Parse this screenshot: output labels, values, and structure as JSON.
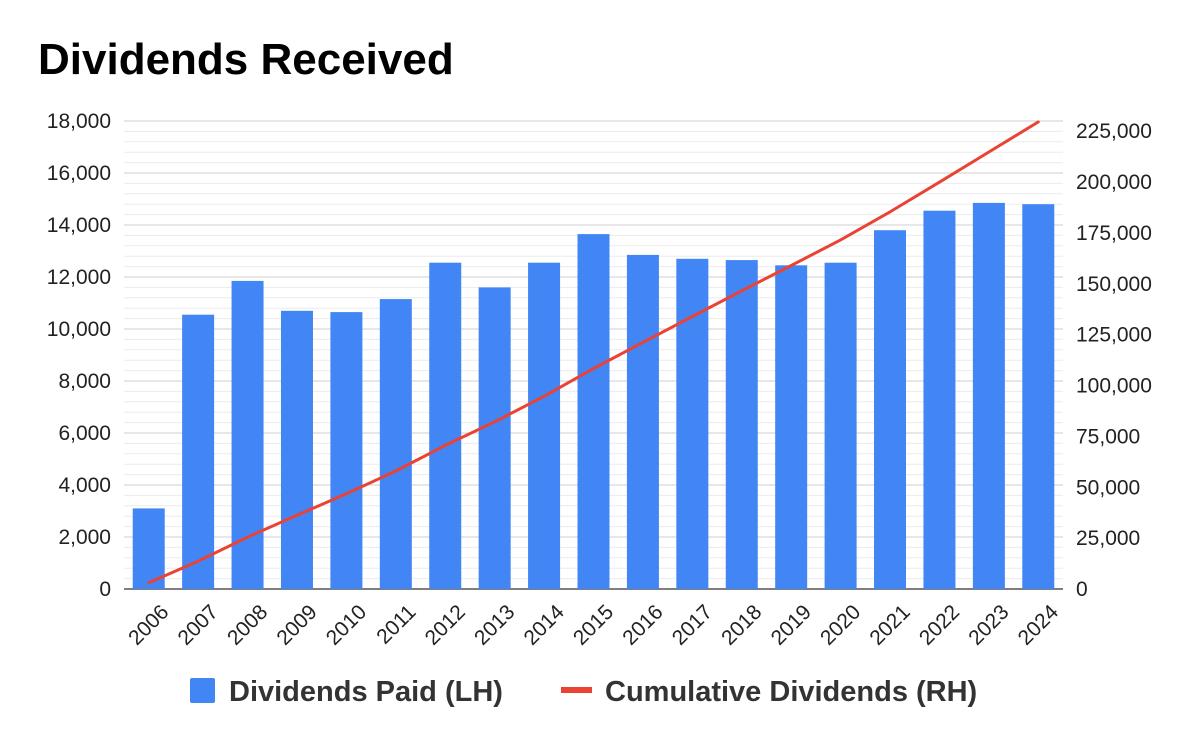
{
  "chart_data": {
    "type": "bar",
    "title": "Dividends Received",
    "categories": [
      "2006",
      "2007",
      "2008",
      "2009",
      "2010",
      "2011",
      "2012",
      "2013",
      "2014",
      "2015",
      "2016",
      "2017",
      "2018",
      "2019",
      "2020",
      "2021",
      "2022",
      "2023",
      "2024"
    ],
    "series": [
      {
        "name": "Dividends Paid (LH)",
        "type": "bar",
        "axis": "left",
        "color": "#4285F4",
        "values": [
          3100,
          10550,
          11850,
          10700,
          10650,
          11150,
          12550,
          11600,
          12550,
          13650,
          12850,
          12700,
          12650,
          12450,
          12550,
          13800,
          14550,
          14850,
          14800
        ]
      },
      {
        "name": "Cumulative Dividends (RH)",
        "type": "line",
        "axis": "right",
        "color": "#EA4335",
        "values": [
          3100,
          13650,
          25500,
          36200,
          46850,
          58000,
          70550,
          82150,
          94700,
          108350,
          121200,
          133900,
          146550,
          159000,
          171550,
          185350,
          199900,
          214750,
          229550
        ]
      }
    ],
    "y_left": {
      "min": 0,
      "max": 18000,
      "ticks": [
        0,
        2000,
        4000,
        6000,
        8000,
        10000,
        12000,
        14000,
        16000,
        18000
      ],
      "tick_labels": [
        "0",
        "2,000",
        "4,000",
        "6,000",
        "8,000",
        "10,000",
        "12,000",
        "14,000",
        "16,000",
        "18,000"
      ]
    },
    "y_right": {
      "min": 0,
      "max": 230000,
      "ticks": [
        0,
        25000,
        50000,
        75000,
        100000,
        125000,
        150000,
        175000,
        200000,
        225000
      ],
      "tick_labels": [
        "0",
        "25,000",
        "50,000",
        "75,000",
        "100,000",
        "125,000",
        "150,000",
        "175,000",
        "200,000",
        "225,000"
      ]
    },
    "minor_gridlines": true,
    "legend_position": "bottom",
    "xlabel": "",
    "ylabel": ""
  }
}
